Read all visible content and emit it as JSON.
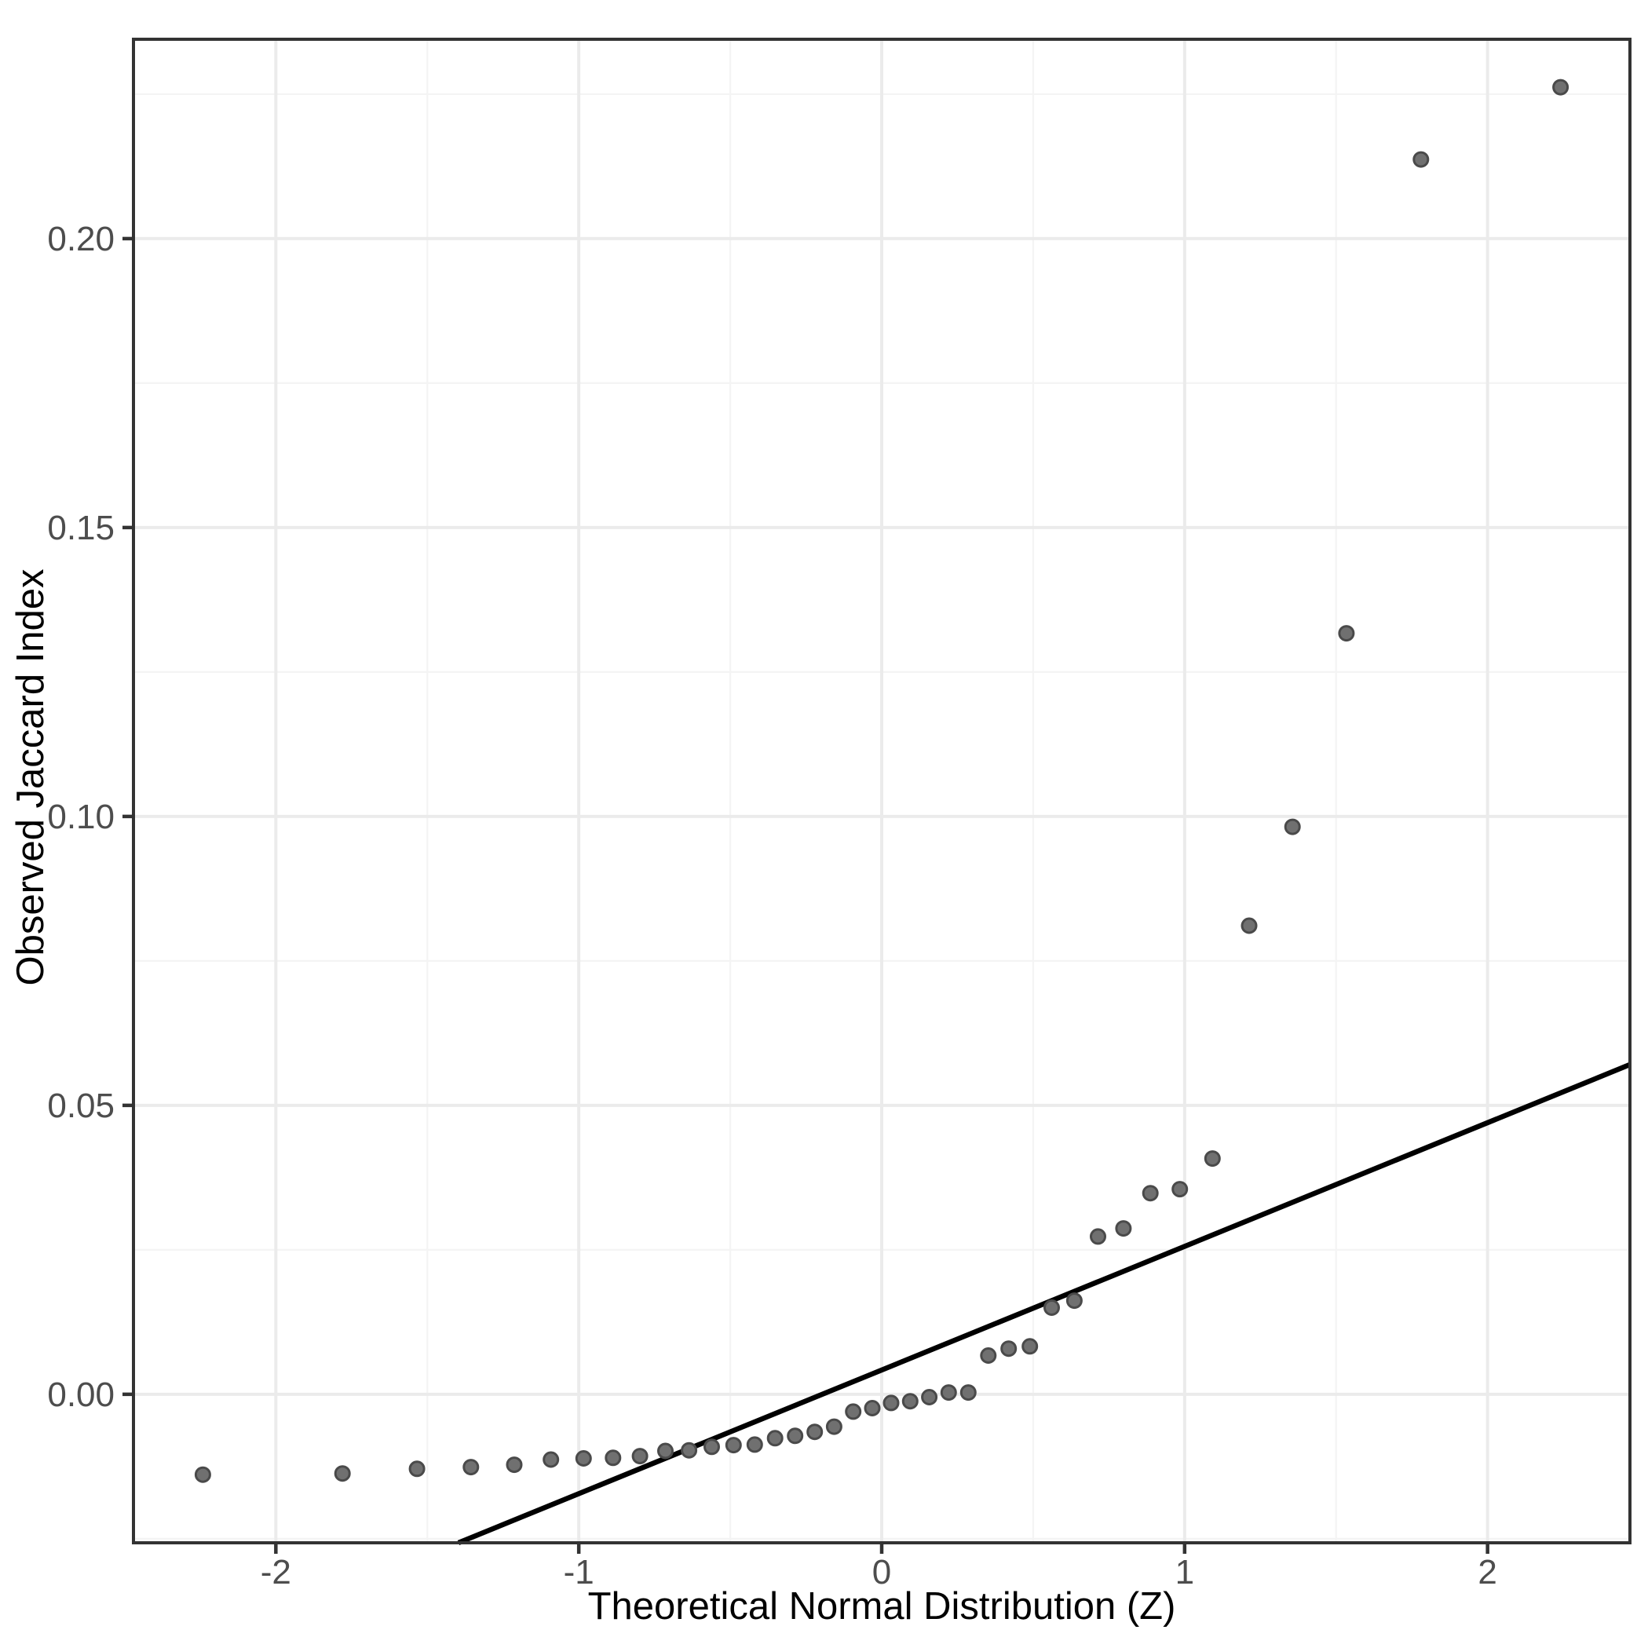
{
  "figure": {
    "kind": "qq-plot",
    "background": "#ffffff"
  },
  "style": {
    "panel_background": "#ffffff",
    "panel_border_color": "#333333",
    "grid_major_color": "#ebebeb",
    "grid_minor_color": "#f4f4f4",
    "tick_mark_color": "#333333",
    "tick_label_color": "#4d4d4d",
    "axis_title_color": "#000000",
    "point_fill": "#707070",
    "point_stroke": "#4a4a4a",
    "reference_line_color": "#000000"
  },
  "chart_data": {
    "type": "scatter",
    "title": "",
    "xlabel": "Theoretical Normal Distribution (Z)",
    "ylabel": "Observed Jaccard Index",
    "xlim": [
      -2.47,
      2.47
    ],
    "ylim": [
      -0.0257,
      0.2345
    ],
    "grid": "major and minor, light gray on white",
    "legend": false,
    "x_ticks": [
      {
        "value": -2,
        "label": "-2"
      },
      {
        "value": -1,
        "label": "-1"
      },
      {
        "value": 0,
        "label": "0"
      },
      {
        "value": 1,
        "label": "1"
      },
      {
        "value": 2,
        "label": "2"
      }
    ],
    "y_ticks": [
      {
        "value": 0.0,
        "label": "0.00"
      },
      {
        "value": 0.05,
        "label": "0.05"
      },
      {
        "value": 0.1,
        "label": "0.10"
      },
      {
        "value": 0.15,
        "label": "0.15"
      },
      {
        "value": 0.2,
        "label": "0.20"
      }
    ],
    "x_minor": [
      -1.5,
      -0.5,
      0.5,
      1.5
    ],
    "y_minor": [
      -0.025,
      0.025,
      0.075,
      0.125,
      0.175,
      0.225
    ],
    "n_points": 40,
    "points_format": "[theoretical_z, observed_jaccard_index]",
    "points": [
      [
        -2.241,
        -0.0139
      ],
      [
        -1.78,
        -0.0137
      ],
      [
        -1.534,
        -0.0129
      ],
      [
        -1.356,
        -0.0126
      ],
      [
        -1.213,
        -0.0122
      ],
      [
        -1.092,
        -0.0113
      ],
      [
        -0.984,
        -0.0111
      ],
      [
        -0.887,
        -0.011
      ],
      [
        -0.798,
        -0.0107
      ],
      [
        -0.714,
        -0.0098
      ],
      [
        -0.636,
        -0.0097
      ],
      [
        -0.561,
        -0.0091
      ],
      [
        -0.489,
        -0.0088
      ],
      [
        -0.419,
        -0.0087
      ],
      [
        -0.352,
        -0.0076
      ],
      [
        -0.286,
        -0.0072
      ],
      [
        -0.221,
        -0.0065
      ],
      [
        -0.157,
        -0.0056
      ],
      [
        -0.094,
        -0.003
      ],
      [
        -0.031,
        -0.0024
      ],
      [
        0.031,
        -0.0015
      ],
      [
        0.094,
        -0.0012
      ],
      [
        0.157,
        -0.0005
      ],
      [
        0.221,
        0.0003
      ],
      [
        0.286,
        0.0003
      ],
      [
        0.352,
        0.0067
      ],
      [
        0.419,
        0.0079
      ],
      [
        0.489,
        0.0083
      ],
      [
        0.561,
        0.015
      ],
      [
        0.636,
        0.0162
      ],
      [
        0.714,
        0.0273
      ],
      [
        0.798,
        0.0287
      ],
      [
        0.887,
        0.0348
      ],
      [
        0.984,
        0.0355
      ],
      [
        1.092,
        0.0408
      ],
      [
        1.213,
        0.0811
      ],
      [
        1.356,
        0.0982
      ],
      [
        1.534,
        0.1317
      ],
      [
        1.78,
        0.2137
      ],
      [
        2.241,
        0.2262
      ]
    ],
    "reference_line": {
      "type": "qq-line",
      "slope": 0.0214,
      "intercept": 0.0042
    }
  }
}
